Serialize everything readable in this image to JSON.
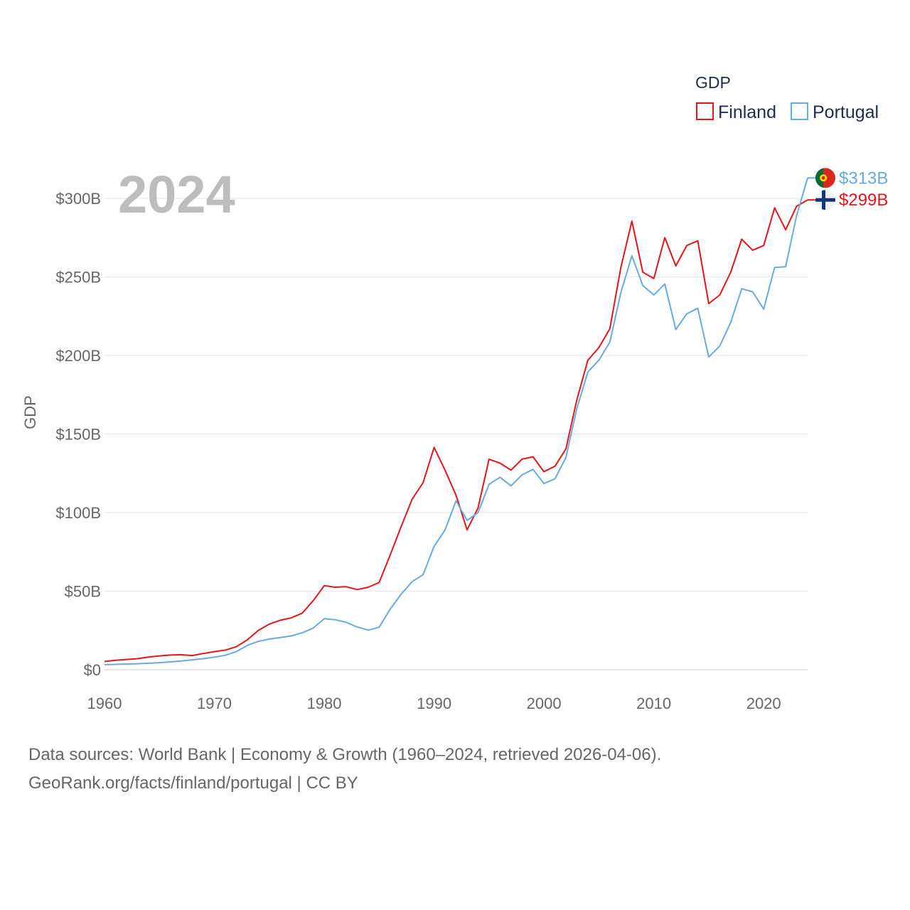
{
  "chart_data": {
    "type": "line",
    "title": "GDP",
    "ylabel": "GDP",
    "xlabel": "",
    "year_label": "2024",
    "ylim": [
      0,
      300
    ],
    "y_ticks": [
      0,
      50,
      100,
      150,
      200,
      250,
      300
    ],
    "y_tick_labels": [
      "$0",
      "$50B",
      "$100B",
      "$150B",
      "$200B",
      "$250B",
      "$300B"
    ],
    "x_ticks": [
      1960,
      1970,
      1980,
      1990,
      2000,
      2010,
      2020
    ],
    "x_tick_labels": [
      "1960",
      "1970",
      "1980",
      "1990",
      "2000",
      "2010",
      "2020"
    ],
    "xlim": [
      1960,
      2024
    ],
    "legend": {
      "title": "GDP",
      "position": "top-right"
    },
    "x": [
      1960,
      1961,
      1962,
      1963,
      1964,
      1965,
      1966,
      1967,
      1968,
      1969,
      1970,
      1971,
      1972,
      1973,
      1974,
      1975,
      1976,
      1977,
      1978,
      1979,
      1980,
      1981,
      1982,
      1983,
      1984,
      1985,
      1986,
      1987,
      1988,
      1989,
      1990,
      1991,
      1992,
      1993,
      1994,
      1995,
      1996,
      1997,
      1998,
      1999,
      2000,
      2001,
      2002,
      2003,
      2004,
      2005,
      2006,
      2007,
      2008,
      2009,
      2010,
      2011,
      2012,
      2013,
      2014,
      2015,
      2016,
      2017,
      2018,
      2019,
      2020,
      2021,
      2022,
      2023,
      2024
    ],
    "series": [
      {
        "name": "Finland",
        "color": "#e8141a",
        "end_label": "$299B",
        "flag": "finland-flag-icon",
        "values": [
          5.2,
          6.0,
          6.5,
          7.0,
          8.0,
          8.8,
          9.3,
          9.5,
          9.0,
          10.3,
          11.5,
          12.5,
          14.6,
          19.0,
          25.0,
          29.0,
          31.5,
          33.0,
          36.0,
          44.0,
          53.5,
          52.5,
          52.8,
          51.0,
          52.5,
          55.5,
          73.0,
          91.0,
          108.5,
          119.0,
          141.5,
          127.0,
          111.0,
          89.0,
          103.0,
          134.0,
          131.5,
          127.0,
          134.0,
          135.5,
          126.0,
          129.5,
          140.5,
          172.0,
          197.0,
          205.0,
          217.0,
          256.0,
          285.5,
          253.0,
          249.0,
          275.0,
          257.0,
          270.0,
          273.0,
          233.0,
          238.5,
          253.0,
          274.0,
          267.0,
          270.0,
          294.0,
          280.0,
          295.0,
          299.0
        ]
      },
      {
        "name": "Portugal",
        "color": "#66aae6",
        "end_label": "$313B",
        "flag": "portugal-flag-icon",
        "values": [
          3.2,
          3.4,
          3.6,
          3.8,
          4.1,
          4.5,
          5.0,
          5.5,
          6.3,
          7.0,
          8.0,
          9.2,
          11.5,
          15.5,
          18.0,
          19.5,
          20.5,
          21.5,
          23.5,
          26.5,
          32.5,
          31.8,
          30.2,
          27.2,
          25.2,
          27.0,
          38.5,
          48.0,
          56.0,
          60.5,
          78.5,
          89.0,
          107.5,
          95.0,
          100.0,
          118.0,
          122.5,
          117.0,
          124.0,
          127.5,
          118.5,
          121.5,
          135.0,
          166.5,
          189.5,
          197.0,
          208.5,
          240.0,
          263.5,
          244.5,
          238.5,
          245.5,
          216.5,
          226.5,
          230.0,
          199.0,
          206.0,
          221.0,
          242.5,
          240.5,
          229.5,
          256.0,
          256.5,
          289.0,
          313.0
        ]
      }
    ]
  },
  "source": {
    "line1": "Data sources: World Bank | Economy & Growth (1960–2024, retrieved 2026-04-06).",
    "line2": "GeoRank.org/facts/finland/portugal | CC BY"
  }
}
